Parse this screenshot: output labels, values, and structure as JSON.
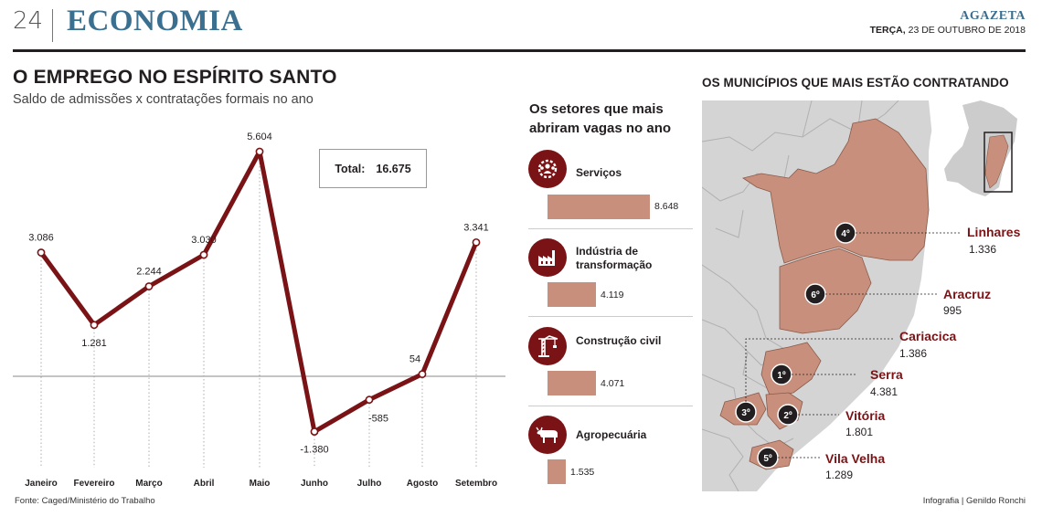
{
  "header": {
    "page_number": "24",
    "section": "ECONOMIA",
    "brand": "AGAZETA",
    "weekday": "TERÇA,",
    "date": "23 DE OUTUBRO DE 2018"
  },
  "left": {
    "title": "O EMPREGO NO ESPÍRITO SANTO",
    "subtitle": "Saldo de admissões x contratações formais no ano",
    "total_label": "Total:",
    "total_value": "16.675",
    "source": "Fonte: Caged/Ministério do Trabalho"
  },
  "chart_data": {
    "type": "line",
    "title": "O EMPREGO NO ESPÍRITO SANTO",
    "subtitle": "Saldo de admissões x contratações formais no ano",
    "categories": [
      "Janeiro",
      "Fevereiro",
      "Março",
      "Abril",
      "Maio",
      "Junho",
      "Julho",
      "Agosto",
      "Setembro"
    ],
    "values": [
      3086,
      1281,
      2244,
      3030,
      5604,
      -1380,
      -585,
      54,
      3341
    ],
    "labels": [
      "3.086",
      "1.281",
      "2.244",
      "3.030",
      "5.604",
      "-1.380",
      "-585",
      "54",
      "3.341"
    ],
    "line_color": "#7a1316",
    "grid": false
  },
  "sectors": {
    "title": "Os setores que mais abriram vagas no ano",
    "items": [
      {
        "name": "Serviços",
        "value": 8648,
        "value_label": "8.648",
        "icon": "gears-people-icon"
      },
      {
        "name": "Indústria de transformação",
        "value": 4119,
        "value_label": "4.119",
        "icon": "factory-icon"
      },
      {
        "name": "Construção civil",
        "value": 4071,
        "value_label": "4.071",
        "icon": "crane-icon"
      },
      {
        "name": "Agropecuária",
        "value": 1535,
        "value_label": "1.535",
        "icon": "cow-icon"
      }
    ],
    "bar_color": "#c8907c",
    "icon_color": "#7a1316"
  },
  "map": {
    "title": "OS MUNICÍPIOS QUE MAIS ESTÃO CONTRATANDO",
    "municipalities": [
      {
        "rank": "4º",
        "name": "Linhares",
        "value": "1.336"
      },
      {
        "rank": "6º",
        "name": "Aracruz",
        "value": "995"
      },
      {
        "rank": "3º",
        "name": "Cariacica",
        "value": "1.386"
      },
      {
        "rank": "1º",
        "name": "Serra",
        "value": "4.381"
      },
      {
        "rank": "2º",
        "name": "Vitória",
        "value": "1.801"
      },
      {
        "rank": "5º",
        "name": "Vila Velha",
        "value": "1.289"
      }
    ],
    "highlight_color": "#c8907c",
    "base_color": "#d4d4d4",
    "credit": "Infografia | Genildo Ronchi"
  }
}
